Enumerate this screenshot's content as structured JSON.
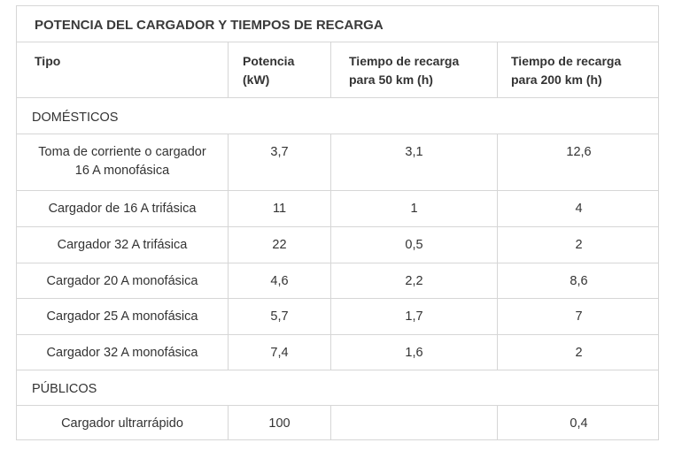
{
  "table": {
    "title": "POTENCIA DEL CARGADOR Y TIEMPOS DE RECARGA",
    "headers": {
      "tipo": "Tipo",
      "potencia_l1": "Potencia",
      "potencia_l2": "(kW)",
      "t50_l1": "Tiempo de recarga",
      "t50_l2": "para 50 km (h)",
      "t200_l1": "Tiempo de recarga",
      "t200_l2": "para 200 km (h)"
    },
    "sections": {
      "domesticos": "DOMÉSTICOS",
      "publicos": "PÚBLICOS"
    },
    "rows": [
      {
        "tipo_l1": "Toma de corriente o cargador",
        "tipo_l2": "16 A monofásica",
        "potencia": "3,7",
        "t50": "3,1",
        "t200": "12,6"
      },
      {
        "tipo_l1": "Cargador de 16 A trifásica",
        "potencia": "11",
        "t50": "1",
        "t200": "4"
      },
      {
        "tipo_l1": "Cargador 32 A trifásica",
        "potencia": "22",
        "t50": "0,5",
        "t200": "2"
      },
      {
        "tipo_l1": "Cargador 20 A monofásica",
        "potencia": "4,6",
        "t50": "2,2",
        "t200": "8,6"
      },
      {
        "tipo_l1": "Cargador 25 A monofásica",
        "potencia": "5,7",
        "t50": "1,7",
        "t200": "7"
      },
      {
        "tipo_l1": "Cargador 32 A monofásica",
        "potencia": "7,4",
        "t50": "1,6",
        "t200": "2"
      },
      {
        "tipo_l1": "Cargador ultrarrápido",
        "potencia": "100",
        "t50": "",
        "t200": "0,4"
      }
    ]
  }
}
